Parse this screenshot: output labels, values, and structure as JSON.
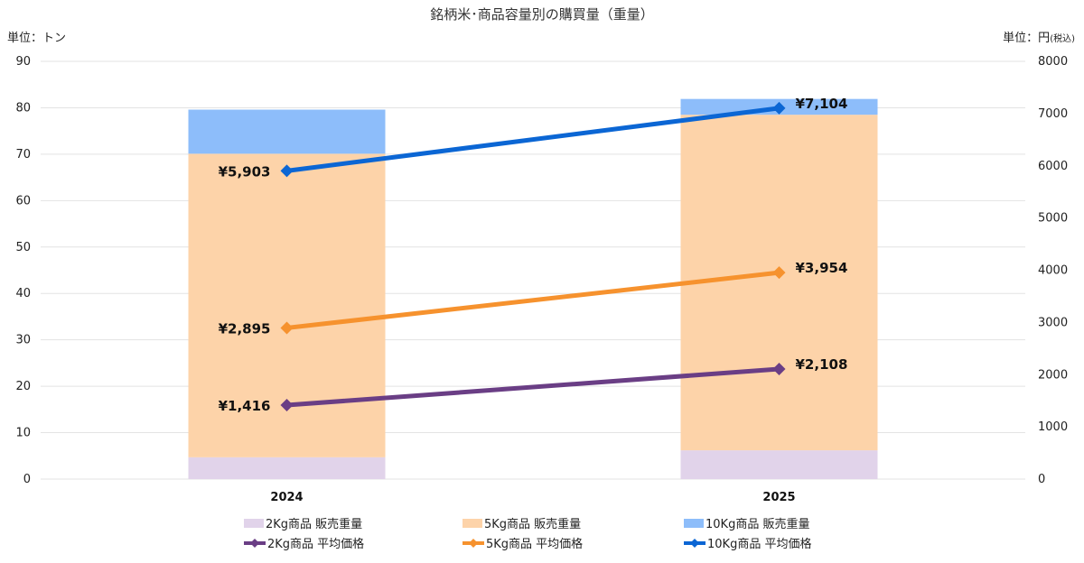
{
  "chart_data": {
    "type": "bar",
    "title": "銘柄米･商品容量別の購買量（重量）",
    "y_left_unit": "単位：トン",
    "y_right_unit_main": "単位：円",
    "y_right_unit_sub": "(税込)",
    "categories": [
      "2024",
      "2025"
    ],
    "y_left_lim": [
      0,
      90
    ],
    "y_left_ticks": [
      "0",
      "10",
      "20",
      "30",
      "40",
      "50",
      "60",
      "70",
      "80",
      "90"
    ],
    "y_right_lim": [
      0,
      8000
    ],
    "y_right_ticks": [
      "0",
      "1000",
      "2000",
      "3000",
      "4000",
      "5000",
      "6000",
      "7000",
      "8000"
    ],
    "grid": true,
    "legend_position": "bottom",
    "bar_series": [
      {
        "name": "2Kg商品 販売重量",
        "color": "#e1d3ea",
        "values": [
          4.7,
          6.2
        ]
      },
      {
        "name": "5Kg商品 販売重量",
        "color": "#fdd3a9",
        "values": [
          65.4,
          72.3
        ]
      },
      {
        "name": "10Kg商品 販売重量",
        "color": "#8dbdfa",
        "values": [
          9.5,
          3.4
        ]
      }
    ],
    "line_series": [
      {
        "name": "2Kg商品 平均価格",
        "color": "#6a3e85",
        "values": [
          1416,
          2108
        ],
        "labels": [
          "¥1,416",
          "¥2,108"
        ]
      },
      {
        "name": "5Kg商品 平均価格",
        "color": "#f6922e",
        "values": [
          2895,
          3954
        ],
        "labels": [
          "¥2,895",
          "¥3,954"
        ]
      },
      {
        "name": "10Kg商品 平均価格",
        "color": "#0b66d4",
        "values": [
          5903,
          7104
        ],
        "labels": [
          "¥5,903",
          "¥7,104"
        ]
      }
    ]
  }
}
